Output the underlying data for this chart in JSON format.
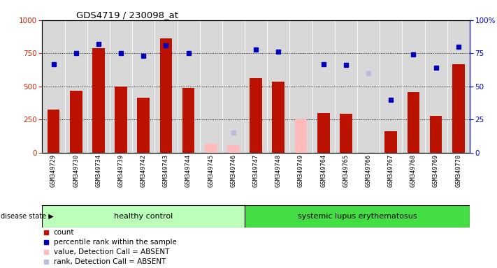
{
  "title": "GDS4719 / 230098_at",
  "samples": [
    "GSM349729",
    "GSM349730",
    "GSM349734",
    "GSM349739",
    "GSM349742",
    "GSM349743",
    "GSM349744",
    "GSM349745",
    "GSM349746",
    "GSM349747",
    "GSM349748",
    "GSM349749",
    "GSM349764",
    "GSM349765",
    "GSM349766",
    "GSM349767",
    "GSM349768",
    "GSM349769",
    "GSM349770"
  ],
  "count_vals": [
    325,
    470,
    790,
    500,
    415,
    860,
    490,
    null,
    null,
    560,
    535,
    null,
    300,
    295,
    null,
    165,
    455,
    280,
    670
  ],
  "rank_vals": [
    67,
    75,
    82,
    75,
    73,
    81,
    75,
    null,
    null,
    78,
    76,
    null,
    67,
    66,
    null,
    40,
    74,
    64,
    80
  ],
  "absent_cnt": [
    null,
    null,
    null,
    null,
    null,
    null,
    null,
    70,
    55,
    null,
    null,
    255,
    null,
    null,
    null,
    null,
    null,
    null,
    null
  ],
  "absent_rank": [
    null,
    null,
    null,
    null,
    null,
    null,
    null,
    null,
    15,
    null,
    null,
    null,
    null,
    null,
    60,
    null,
    null,
    null,
    null
  ],
  "hc_count": 9,
  "bar_color": "#bb1100",
  "rank_color": "#0000bb",
  "absent_bar_color": "#ffbbbb",
  "absent_rank_color": "#bbbbdd",
  "axis_bg": "#d8d8d8",
  "healthy_bg": "#bbffbb",
  "lupus_bg": "#44dd44",
  "group1_label": "healthy control",
  "group2_label": "systemic lupus erythematosus",
  "disease_state_label": "disease state",
  "legend_labels": [
    "count",
    "percentile rank within the sample",
    "value, Detection Call = ABSENT",
    "rank, Detection Call = ABSENT"
  ]
}
